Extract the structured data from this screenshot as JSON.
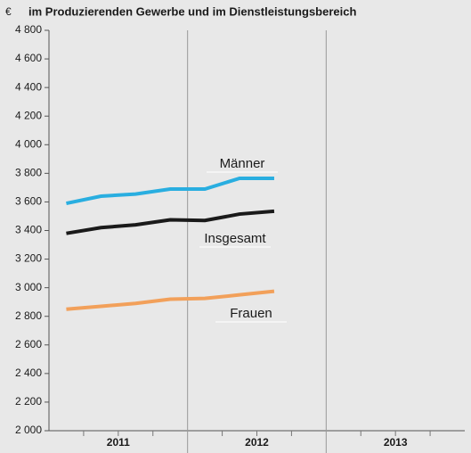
{
  "chart_data": {
    "type": "line",
    "title": "im Produzierenden Gewerbe und im Dienstleistungsbereich",
    "y_label": "€",
    "categories": [
      null,
      null,
      null,
      null,
      null,
      null,
      null,
      null,
      null,
      null,
      null,
      null
    ],
    "year_labels": [
      "2011",
      "2012",
      "2013"
    ],
    "series": [
      {
        "name": "Männer",
        "color": "#29aee0",
        "values": [
          3590,
          3640,
          3655,
          3690,
          3690,
          3765,
          3765,
          null,
          null,
          null,
          null,
          null
        ]
      },
      {
        "name": "Insgesamt",
        "color": "#1a1a1a",
        "values": [
          3380,
          3420,
          3440,
          3475,
          3470,
          3515,
          3535,
          null,
          null,
          null,
          null,
          null
        ]
      },
      {
        "name": "Frauen",
        "color": "#f2a05a",
        "values": [
          2850,
          2870,
          2890,
          2920,
          2925,
          2950,
          2975,
          null,
          null,
          null,
          null,
          null
        ]
      }
    ],
    "ylim": [
      2000,
      4800
    ],
    "yticks": [
      {
        "value": 2000,
        "label": "2 000"
      },
      {
        "value": 2200,
        "label": "2 200"
      },
      {
        "value": 2400,
        "label": "2 400"
      },
      {
        "value": 2600,
        "label": "2 600"
      },
      {
        "value": 2800,
        "label": "2 800"
      },
      {
        "value": 3000,
        "label": "3 000"
      },
      {
        "value": 3200,
        "label": "3 200"
      },
      {
        "value": 3400,
        "label": "3 400"
      },
      {
        "value": 3600,
        "label": "3 600"
      },
      {
        "value": 3800,
        "label": "3 800"
      },
      {
        "value": 4000,
        "label": "4 000"
      },
      {
        "value": 4200,
        "label": "4 200"
      },
      {
        "value": 4400,
        "label": "4 400"
      },
      {
        "value": 4600,
        "label": "4 600"
      },
      {
        "value": 4800,
        "label": "4 800"
      }
    ]
  }
}
